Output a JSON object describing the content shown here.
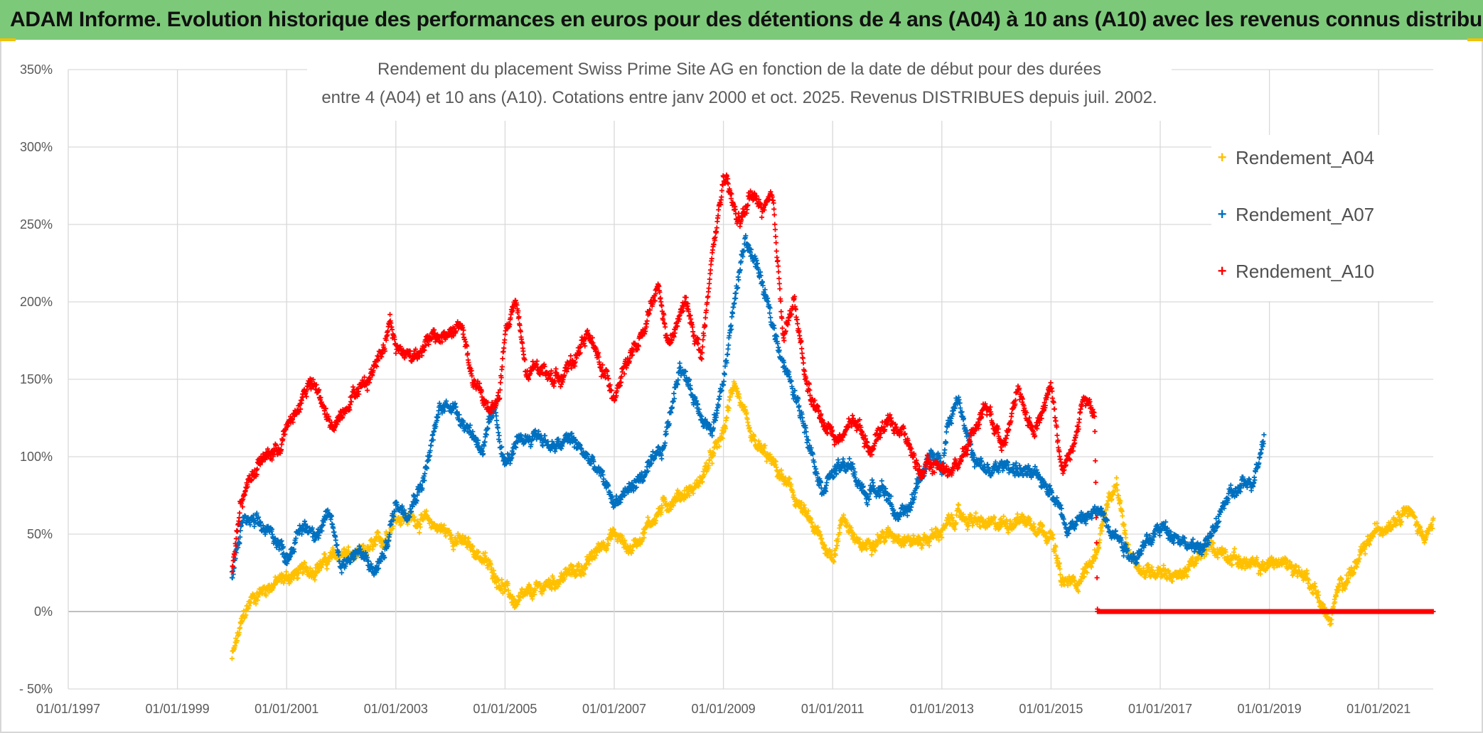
{
  "header": {
    "banner": "ADAM Informe. Evolution historique des performances en euros pour des détentions de 4 ans (A04) à 10 ans (A10) avec les revenus connus distribués"
  },
  "chart_data": {
    "type": "scatter",
    "title_line1": "Rendement du placement Swiss Prime Site AG en fonction de la date de début pour des durées",
    "title_line2": "entre 4 (A04) et 10 ans (A10). Cotations entre janv 2000 et oct. 2025. Revenus DISTRIBUES depuis juil. 2002.",
    "xlabel": "",
    "ylabel": "",
    "xlim": [
      1997.0,
      2022.0
    ],
    "ylim": [
      -50,
      350
    ],
    "y_ticks": [
      -50,
      0,
      50,
      100,
      150,
      200,
      250,
      300,
      350
    ],
    "y_tick_labels": [
      "- 50%",
      "0%",
      "50%",
      "100%",
      "150%",
      "200%",
      "250%",
      "300%",
      "350%"
    ],
    "x_ticks": [
      1997,
      1999,
      2001,
      2003,
      2005,
      2007,
      2009,
      2011,
      2013,
      2015,
      2017,
      2019,
      2021
    ],
    "x_tick_labels": [
      "01/01/1997",
      "01/01/1999",
      "01/01/2001",
      "01/01/2003",
      "01/01/2005",
      "01/01/2007",
      "01/01/2009",
      "01/01/2011",
      "01/01/2013",
      "01/01/2015",
      "01/01/2017",
      "01/01/2019",
      "01/01/2021"
    ],
    "grid": true,
    "legend_position": "top-right",
    "marker": "+",
    "series": [
      {
        "name": "Rendement_A04",
        "color": "#ffc000",
        "x": [
          2000.0,
          2000.2,
          2000.35,
          2000.6,
          2001.0,
          2001.5,
          2001.8,
          2002.0,
          2002.3,
          2002.6,
          2002.8,
          2003.0,
          2003.3,
          2003.6,
          2003.9,
          2004.2,
          2004.5,
          2004.8,
          2005.0,
          2005.2,
          2005.5,
          2005.8,
          2006.2,
          2006.5,
          2006.8,
          2007.0,
          2007.3,
          2007.6,
          2007.9,
          2008.2,
          2008.5,
          2008.8,
          2009.0,
          2009.2,
          2009.5,
          2009.8,
          2010.2,
          2010.5,
          2010.8,
          2011.0,
          2011.2,
          2011.5,
          2011.8,
          2012.2,
          2012.5,
          2012.8,
          2013.0,
          2013.3,
          2013.6,
          2013.9,
          2014.2,
          2014.5,
          2014.8,
          2015.0,
          2015.2,
          2015.5,
          2015.8,
          2016.0,
          2016.2,
          2016.4,
          2016.7,
          2017.0,
          2017.3,
          2017.6,
          2017.9,
          2018.2,
          2018.5,
          2018.8,
          2019.1,
          2019.4,
          2019.7,
          2019.9,
          2020.1,
          2020.3,
          2020.6,
          2020.9,
          2021.2,
          2021.5,
          2021.8,
          2022.0
        ],
        "y": [
          -30,
          -5,
          8,
          15,
          22,
          28,
          34,
          38,
          35,
          42,
          48,
          62,
          60,
          58,
          52,
          45,
          38,
          25,
          15,
          5,
          12,
          18,
          25,
          30,
          45,
          50,
          40,
          55,
          68,
          75,
          80,
          100,
          115,
          150,
          110,
          100,
          80,
          62,
          45,
          35,
          62,
          40,
          48,
          50,
          45,
          48,
          52,
          62,
          58,
          55,
          58,
          60,
          55,
          50,
          18,
          20,
          35,
          65,
          80,
          42,
          25,
          28,
          22,
          30,
          42,
          38,
          32,
          28,
          32,
          30,
          22,
          10,
          -8,
          18,
          30,
          50,
          58,
          68,
          50,
          55
        ]
      },
      {
        "name": "Rendement_A07",
        "color": "#0070c0",
        "x": [
          2000.0,
          2000.2,
          2000.5,
          2000.8,
          2001.0,
          2001.3,
          2001.6,
          2001.8,
          2002.0,
          2002.3,
          2002.6,
          2002.8,
          2003.0,
          2003.2,
          2003.5,
          2003.8,
          2004.0,
          2004.3,
          2004.6,
          2004.8,
          2005.0,
          2005.3,
          2005.6,
          2005.9,
          2006.2,
          2006.5,
          2006.8,
          2007.0,
          2007.3,
          2007.6,
          2007.9,
          2008.2,
          2008.5,
          2008.8,
          2009.0,
          2009.2,
          2009.4,
          2009.6,
          2009.9,
          2010.2,
          2010.5,
          2010.8,
          2011.0,
          2011.3,
          2011.6,
          2011.9,
          2012.2,
          2012.4,
          2012.6,
          2012.8,
          2013.0,
          2013.1,
          2013.3,
          2013.6,
          2013.9,
          2014.2,
          2014.5,
          2014.8,
          2015.0,
          2015.3,
          2015.6,
          2015.9,
          2016.2,
          2016.5,
          2016.8,
          2017.0,
          2017.3,
          2017.6,
          2017.9,
          2018.2,
          2018.5,
          2018.7,
          2018.9
        ],
        "y": [
          22,
          60,
          55,
          48,
          35,
          55,
          52,
          62,
          30,
          40,
          25,
          38,
          70,
          65,
          85,
          130,
          135,
          120,
          105,
          130,
          95,
          110,
          115,
          105,
          112,
          100,
          85,
          70,
          80,
          90,
          105,
          160,
          135,
          115,
          150,
          200,
          240,
          225,
          185,
          150,
          120,
          80,
          90,
          95,
          75,
          82,
          60,
          65,
          88,
          100,
          95,
          120,
          140,
          95,
          90,
          95,
          90,
          85,
          80,
          55,
          60,
          65,
          50,
          35,
          45,
          55,
          50,
          40,
          45,
          72,
          80,
          85,
          115
        ]
      },
      {
        "name": "Rendement_A10",
        "color": "#ff0000",
        "x": [
          2000.0,
          2000.15,
          2000.35,
          2000.6,
          2000.85,
          2001.0,
          2001.2,
          2001.4,
          2001.6,
          2001.8,
          2002.0,
          2002.2,
          2002.5,
          2002.8,
          2002.9,
          2003.0,
          2003.3,
          2003.6,
          2003.9,
          2004.2,
          2004.4,
          2004.7,
          2004.9,
          2005.0,
          2005.2,
          2005.4,
          2005.6,
          2005.9,
          2006.2,
          2006.5,
          2006.8,
          2007.0,
          2007.2,
          2007.5,
          2007.8,
          2008.0,
          2008.3,
          2008.6,
          2008.8,
          2009.0,
          2009.15,
          2009.3,
          2009.5,
          2009.7,
          2009.9,
          2010.1,
          2010.3,
          2010.5,
          2010.7,
          2010.9,
          2011.1,
          2011.4,
          2011.7,
          2012.0,
          2012.3,
          2012.6,
          2012.9,
          2013.2,
          2013.5,
          2013.8,
          2014.1,
          2014.4,
          2014.7,
          2015.0,
          2015.2,
          2015.4,
          2015.6,
          2015.8,
          2015.85
        ],
        "y": [
          25,
          70,
          88,
          100,
          105,
          118,
          130,
          148,
          140,
          118,
          128,
          140,
          150,
          175,
          190,
          170,
          165,
          175,
          178,
          185,
          150,
          130,
          140,
          180,
          200,
          150,
          160,
          150,
          158,
          180,
          155,
          140,
          160,
          175,
          210,
          170,
          200,
          165,
          230,
          280,
          265,
          250,
          270,
          260,
          265,
          180,
          200,
          150,
          130,
          120,
          110,
          125,
          105,
          125,
          115,
          90,
          95,
          90,
          110,
          135,
          110,
          140,
          115,
          148,
          90,
          105,
          140,
          125,
          0
        ]
      },
      {
        "name": "Rendement_A10_zero",
        "color": "#ff0000",
        "legend": false,
        "x_range": [
          2015.85,
          2022.0
        ],
        "y": [
          0
        ]
      }
    ]
  }
}
